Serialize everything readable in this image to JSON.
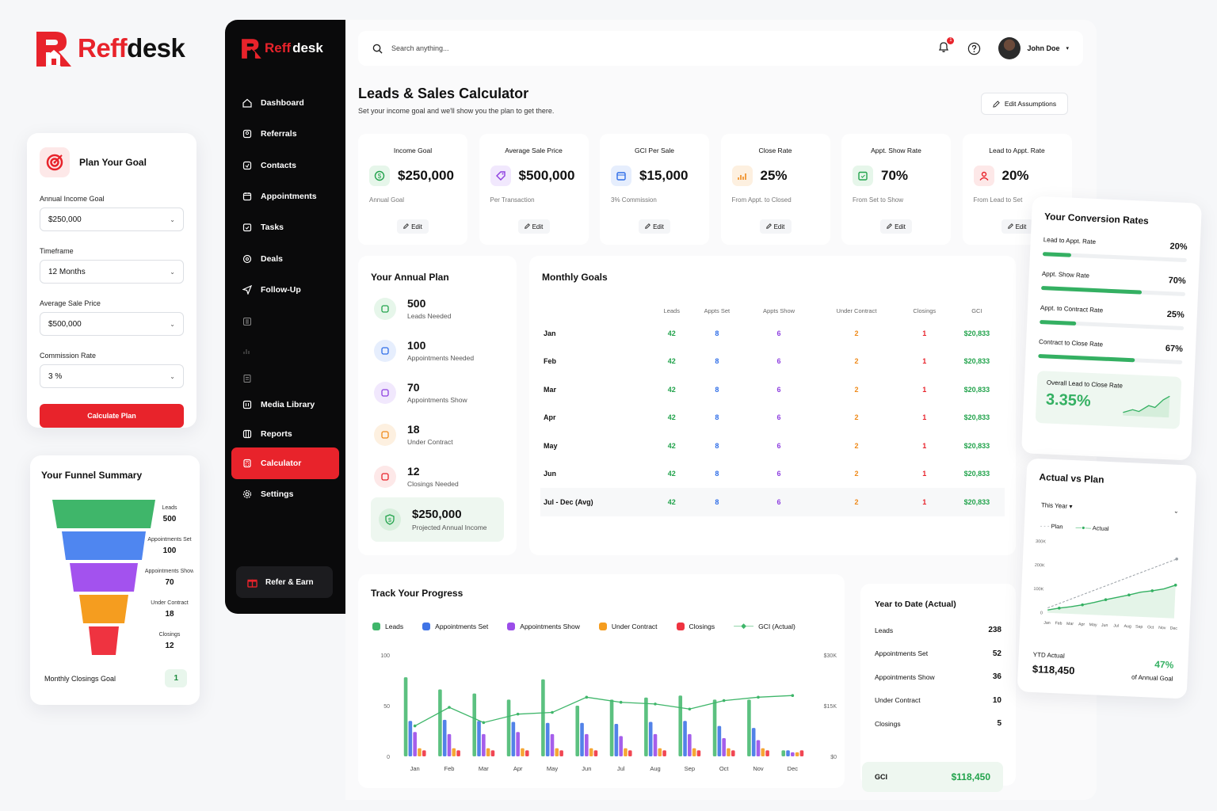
{
  "brand": {
    "name_red": "Reff",
    "name_black": "desk"
  },
  "goal_form": {
    "title": "Plan Your Goal",
    "fields": [
      {
        "label": "Annual Income Goal",
        "value": "$250,000"
      },
      {
        "label": "Timeframe",
        "value": "12 Months"
      },
      {
        "label": "Average Sale Price",
        "value": "$500,000"
      },
      {
        "label": "Commission Rate",
        "value": "3 %"
      }
    ],
    "button": "Calculate Plan"
  },
  "funnel": {
    "title": "Your Funnel Summary",
    "stages": [
      {
        "label": "Leads",
        "value": "500",
        "color": "#3fb66a"
      },
      {
        "label": "Appointments Set",
        "value": "100",
        "color": "#4f86f0"
      },
      {
        "label": "Appointments Show",
        "value": "70",
        "color": "#a352ee"
      },
      {
        "label": "Under Contract",
        "value": "18",
        "color": "#f59d1f"
      },
      {
        "label": "Closings",
        "value": "12",
        "color": "#ef3340"
      }
    ],
    "monthly_label": "Monthly Closings Goal",
    "monthly_value": "1"
  },
  "sidebar": {
    "items": [
      {
        "label": "Dashboard",
        "icon": "home-icon"
      },
      {
        "label": "Referrals",
        "icon": "referrals-icon"
      },
      {
        "label": "Contacts",
        "icon": "contacts-icon"
      },
      {
        "label": "Appointments",
        "icon": "calendar-icon"
      },
      {
        "label": "Tasks",
        "icon": "tasks-icon"
      },
      {
        "label": "Deals",
        "icon": "deals-icon"
      },
      {
        "label": "Follow-Up",
        "icon": "send-icon"
      },
      {
        "label": "",
        "icon": "grid-icon"
      },
      {
        "label": "",
        "icon": "chart-icon"
      },
      {
        "label": "",
        "icon": "doc-icon"
      },
      {
        "label": "Media Library",
        "icon": "media-icon"
      },
      {
        "label": "Reports",
        "icon": "reports-icon"
      },
      {
        "label": "Calculator",
        "icon": "calculator-icon",
        "active": true
      },
      {
        "label": "Settings",
        "icon": "gear-icon"
      }
    ],
    "refer": "Refer & Earn"
  },
  "topbar": {
    "search_placeholder": "Search anything...",
    "notifications": "1",
    "user": "John Doe"
  },
  "page": {
    "title": "Leads & Sales Calculator",
    "subtitle": "Set your income goal and we'll show you the plan to get there.",
    "edit_assumptions": "Edit Assumptions"
  },
  "kpis": [
    {
      "title": "Income Goal",
      "value": "$250,000",
      "sub": "Annual Goal",
      "color": "#22a34c",
      "bg": "#e6f6ea"
    },
    {
      "title": "Average Sale Price",
      "value": "$500,000",
      "sub": "Per Transaction",
      "color": "#8e3fe0",
      "bg": "#f1e8fd"
    },
    {
      "title": "GCI Per Sale",
      "value": "$15,000",
      "sub": "3% Commission",
      "color": "#2f6ee8",
      "bg": "#e6eefd"
    },
    {
      "title": "Close Rate",
      "value": "25%",
      "sub": "From Appt. to Closed",
      "color": "#ef8a1a",
      "bg": "#fdf0e0"
    },
    {
      "title": "Appt. Show Rate",
      "value": "70%",
      "sub": "From Set to Show",
      "color": "#22a34c",
      "bg": "#e6f6ea"
    },
    {
      "title": "Lead to Appt. Rate",
      "value": "20%",
      "sub": "From Lead to Set",
      "color": "#e8232b",
      "bg": "#fde8e8"
    }
  ],
  "kpi_edit": "Edit",
  "annual_plan": {
    "title": "Your Annual Plan",
    "rows": [
      {
        "value": "500",
        "label": "Leads Needed",
        "color": "#22a34c",
        "bg": "#e6f6ea"
      },
      {
        "value": "100",
        "label": "Appointments Needed",
        "color": "#2f6ee8",
        "bg": "#e6eefd"
      },
      {
        "value": "70",
        "label": "Appointments Show",
        "color": "#8e3fe0",
        "bg": "#f1e8fd"
      },
      {
        "value": "18",
        "label": "Under Contract",
        "color": "#ef8a1a",
        "bg": "#fdf0e0"
      },
      {
        "value": "12",
        "label": "Closings Needed",
        "color": "#e8232b",
        "bg": "#fde8e8"
      }
    ],
    "income_value": "$250,000",
    "income_label": "Projected Annual Income"
  },
  "monthly_goals": {
    "title": "Monthly Goals",
    "headers": [
      "",
      "Leads",
      "Appts Set",
      "Appts Show",
      "Under Contract",
      "Closings",
      "GCI"
    ],
    "rows": [
      [
        "Jan",
        "42",
        "8",
        "6",
        "2",
        "1",
        "$20,833"
      ],
      [
        "Feb",
        "42",
        "8",
        "6",
        "2",
        "1",
        "$20,833"
      ],
      [
        "Mar",
        "42",
        "8",
        "6",
        "2",
        "1",
        "$20,833"
      ],
      [
        "Apr",
        "42",
        "8",
        "6",
        "2",
        "1",
        "$20,833"
      ],
      [
        "May",
        "42",
        "8",
        "6",
        "2",
        "1",
        "$20,833"
      ],
      [
        "Jun",
        "42",
        "8",
        "6",
        "2",
        "1",
        "$20,833"
      ],
      [
        "Jul - Dec (Avg)",
        "42",
        "8",
        "6",
        "2",
        "1",
        "$20,833"
      ]
    ]
  },
  "track": {
    "title": "Track Your Progress",
    "legend": [
      {
        "label": "Leads",
        "color": "#3fb66a"
      },
      {
        "label": "Appointments Set",
        "color": "#3f74e6"
      },
      {
        "label": "Appointments Show",
        "color": "#9b4de9"
      },
      {
        "label": "Under Contract",
        "color": "#f59d1f"
      },
      {
        "label": "Closings",
        "color": "#ef3340"
      },
      {
        "label": "GCI (Actual)",
        "color": "#3fb66a",
        "line": true
      }
    ]
  },
  "chart_data": [
    {
      "type": "bar",
      "title": "Track Your Progress",
      "categories": [
        "Jan",
        "Feb",
        "Mar",
        "Apr",
        "May",
        "Jun",
        "Jul",
        "Aug",
        "Sep",
        "Oct",
        "Nov",
        "Dec"
      ],
      "ylim": [
        0,
        100
      ],
      "y2lim": [
        0,
        30000
      ],
      "yticks": [
        "100",
        "50",
        "0"
      ],
      "y2ticks": [
        "$30K",
        "$15K",
        "$0"
      ],
      "series": [
        {
          "name": "Leads",
          "values": [
            78,
            66,
            62,
            56,
            76,
            50,
            56,
            58,
            60,
            56,
            56,
            6
          ],
          "color": "#3fb66a"
        },
        {
          "name": "Appointments Set",
          "values": [
            35,
            36,
            35,
            34,
            33,
            33,
            32,
            34,
            35,
            30,
            28,
            6
          ],
          "color": "#3f74e6"
        },
        {
          "name": "Appointments Show",
          "values": [
            24,
            22,
            22,
            24,
            22,
            22,
            20,
            22,
            22,
            18,
            16,
            4
          ],
          "color": "#9b4de9"
        },
        {
          "name": "Under Contract",
          "values": [
            8,
            8,
            8,
            8,
            8,
            8,
            8,
            8,
            8,
            8,
            8,
            4
          ],
          "color": "#f59d1f"
        },
        {
          "name": "Closings",
          "values": [
            6,
            6,
            6,
            6,
            6,
            6,
            6,
            6,
            6,
            6,
            6,
            6
          ],
          "color": "#ef3340"
        },
        {
          "name": "GCI (Actual)",
          "type": "line",
          "values": [
            9000,
            14500,
            10000,
            12500,
            13000,
            17500,
            16000,
            15500,
            14000,
            16500,
            17500,
            18000
          ],
          "color": "#3fb66a"
        }
      ]
    },
    {
      "type": "line",
      "title": "Actual vs Plan",
      "categories": [
        "Jan",
        "Feb",
        "Mar",
        "Apr",
        "May",
        "Jun",
        "Jul",
        "Aug",
        "Sep",
        "Oct",
        "Nov",
        "Dec"
      ],
      "ylim": [
        0,
        300000
      ],
      "yticks": [
        "300K",
        "200K",
        "100K",
        "0"
      ],
      "series": [
        {
          "name": "Plan",
          "values": [
            20833,
            41667,
            62500,
            83333,
            104167,
            125000,
            145833,
            166667,
            187500,
            208333,
            229167,
            250000
          ],
          "color": "#9aa0a6"
        },
        {
          "name": "Actual",
          "values": [
            12000,
            22000,
            30000,
            40000,
            52000,
            66000,
            78000,
            90000,
            104000,
            112000,
            122000,
            140000
          ],
          "color": "#34b062"
        }
      ]
    }
  ],
  "ytd": {
    "title": "Year to Date (Actual)",
    "rows": [
      {
        "label": "Leads",
        "value": "238"
      },
      {
        "label": "Appointments Set",
        "value": "52"
      },
      {
        "label": "Appointments Show",
        "value": "36"
      },
      {
        "label": "Under Contract",
        "value": "10"
      },
      {
        "label": "Closings",
        "value": "5"
      }
    ],
    "gci_label": "GCI",
    "gci_value": "$118,450"
  },
  "conversion": {
    "title": "Your Conversion Rates",
    "rows": [
      {
        "label": "Lead to Appt. Rate",
        "value": "20%",
        "pct": 20
      },
      {
        "label": "Appt. Show Rate",
        "value": "70%",
        "pct": 70
      },
      {
        "label": "Appt. to Contract Rate",
        "value": "25%",
        "pct": 25
      },
      {
        "label": "Contract to Close Rate",
        "value": "67%",
        "pct": 67
      }
    ],
    "overall_label": "Overall Lead to Close Rate",
    "overall_value": "3.35%"
  },
  "actual_vs_plan": {
    "title": "Actual vs Plan",
    "period": "This Year",
    "legend_plan": "Plan",
    "legend_actual": "Actual",
    "ytd_label": "YTD Actual",
    "ytd_value": "$118,450",
    "pct_value": "47%",
    "pct_label": "of Annual Goal"
  }
}
